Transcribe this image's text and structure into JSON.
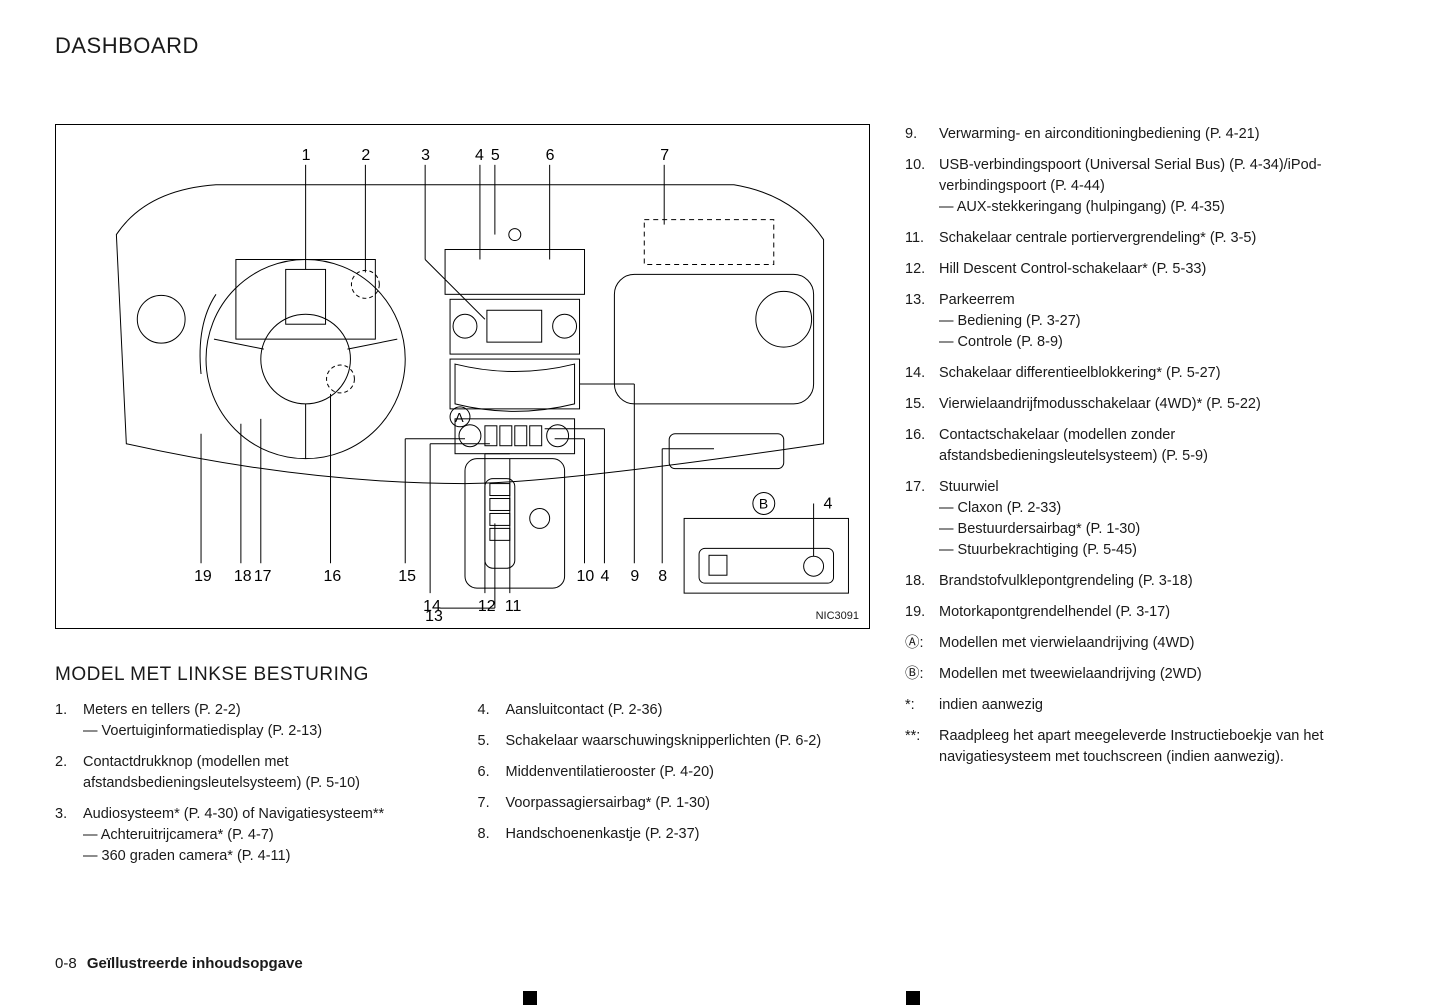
{
  "page": {
    "title": "DASHBOARD",
    "footer_page": "0-8",
    "footer_title": "Geïllustreerde inhoudsopgave"
  },
  "diagram": {
    "image_id": "NIC3091",
    "top_numbers": [
      "1",
      "2",
      "3",
      "4",
      "5",
      "6",
      "7"
    ],
    "bottom_numbers": [
      "19",
      "18",
      "17",
      "16",
      "15",
      "14",
      "13",
      "12",
      "11",
      "10",
      "4",
      "9",
      "8"
    ],
    "letter_a": "A",
    "letter_b": "B",
    "inset_label": "4"
  },
  "section_heading": "MODEL MET LINKSE BESTURING",
  "left_col": [
    {
      "n": "1.",
      "t": "Meters en tellers (P. 2-2)",
      "subs": [
        "Voertuiginformatiedisplay (P. 2-13)"
      ]
    },
    {
      "n": "2.",
      "t": "Contactdrukknop (modellen met afstandsbedieningsleutelsysteem) (P. 5-10)",
      "subs": []
    },
    {
      "n": "3.",
      "t": "Audiosysteem* (P. 4-30) of Navigatiesysteem**",
      "subs": [
        "Achteruitrijcamera* (P. 4-7)",
        "360 graden camera* (P. 4-11)"
      ]
    }
  ],
  "mid_col": [
    {
      "n": "4.",
      "t": "Aansluitcontact (P. 2-36)",
      "subs": []
    },
    {
      "n": "5.",
      "t": "Schakelaar waarschuwingsknipperlichten (P. 6-2)",
      "subs": []
    },
    {
      "n": "6.",
      "t": "Middenventilatierooster (P. 4-20)",
      "subs": []
    },
    {
      "n": "7.",
      "t": "Voorpassagiersairbag* (P. 1-30)",
      "subs": []
    },
    {
      "n": "8.",
      "t": "Handschoenenkastje (P. 2-37)",
      "subs": []
    }
  ],
  "right_col": [
    {
      "n": "9.",
      "t": "Verwarming- en airconditioningbediening (P. 4-21)",
      "subs": []
    },
    {
      "n": "10.",
      "t": "USB-verbindingspoort (Universal Serial Bus) (P. 4-34)/iPod-verbindingspoort (P. 4-44)",
      "subs": [
        "AUX-stekkeringang (hulpingang) (P. 4-35)"
      ]
    },
    {
      "n": "11.",
      "t": "Schakelaar centrale portiervergrendeling* (P. 3-5)",
      "subs": []
    },
    {
      "n": "12.",
      "t": "Hill Descent Control-schakelaar* (P. 5-33)",
      "subs": []
    },
    {
      "n": "13.",
      "t": "Parkeerrem",
      "subs": [
        "Bediening (P. 3-27)",
        "Controle (P. 8-9)"
      ]
    },
    {
      "n": "14.",
      "t": "Schakelaar differentieelblokkering* (P. 5-27)",
      "subs": []
    },
    {
      "n": "15.",
      "t": "Vierwielaandrijfmodusschakelaar (4WD)* (P. 5-22)",
      "subs": []
    },
    {
      "n": "16.",
      "t": "Contactschakelaar (modellen zonder afstandsbedieningsleutelsysteem) (P. 5-9)",
      "subs": []
    },
    {
      "n": "17.",
      "t": "Stuurwiel",
      "subs": [
        "Claxon (P. 2-33)",
        "Bestuurdersairbag* (P. 1-30)",
        "Stuurbekrachtiging (P. 5-45)"
      ]
    },
    {
      "n": "18.",
      "t": "Brandstofvulklepontgrendeling (P. 3-18)",
      "subs": []
    },
    {
      "n": "19.",
      "t": "Motorkapontgrendelhendel (P. 3-17)",
      "subs": []
    },
    {
      "n": "Ⓐ:",
      "t": "Modellen met vierwielaandrijving (4WD)",
      "subs": []
    },
    {
      "n": "Ⓑ:",
      "t": "Modellen met tweewielaandrijving (2WD)",
      "subs": []
    },
    {
      "n": "*:",
      "t": "indien aanwezig",
      "subs": []
    },
    {
      "n": "**:",
      "t": "Raadpleeg het apart meegeleverde Instructieboekje van het navigatiesysteem met touchscreen (indien aanwezig).",
      "subs": []
    }
  ]
}
